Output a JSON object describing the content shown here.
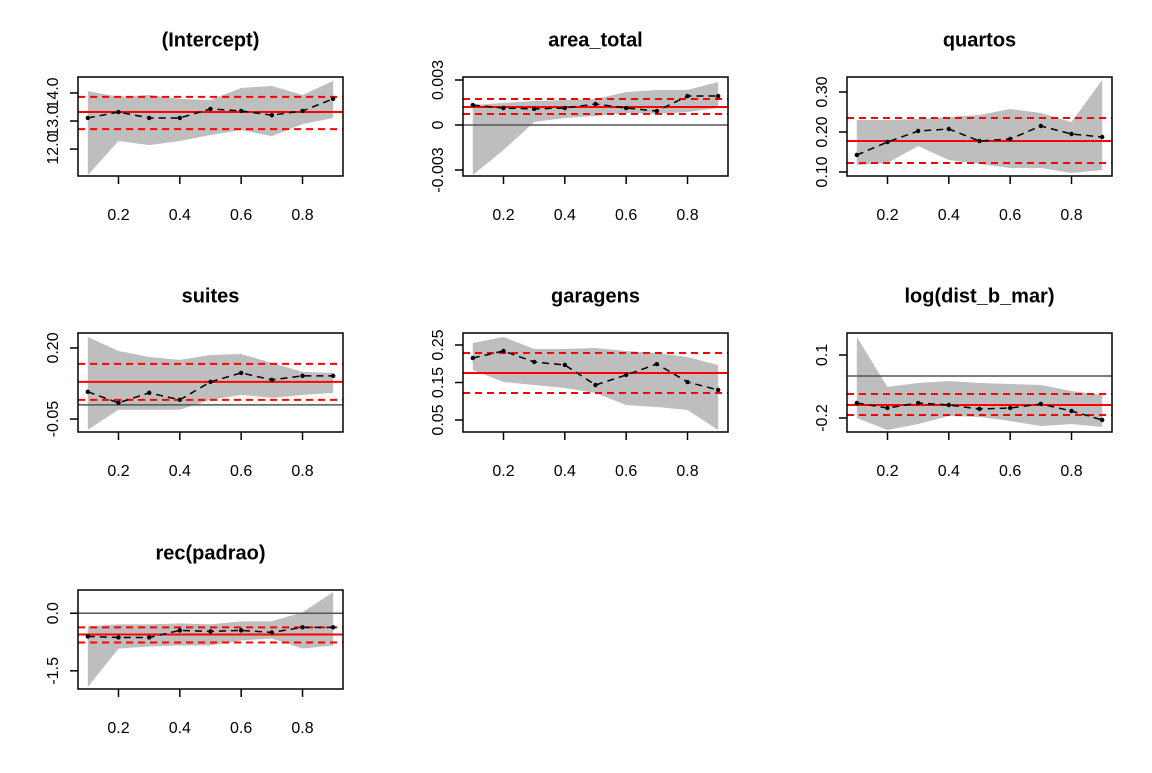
{
  "chart_data": [
    {
      "type": "line",
      "title": "(Intercept)",
      "x": [
        0.1,
        0.2,
        0.3,
        0.4,
        0.5,
        0.6,
        0.7,
        0.8,
        0.9
      ],
      "values": [
        13.11,
        13.32,
        13.11,
        13.11,
        13.43,
        13.36,
        13.21,
        13.36,
        13.79
      ],
      "lower": [
        11.07,
        12.29,
        12.14,
        12.29,
        12.5,
        12.68,
        12.46,
        12.89,
        13.11
      ],
      "upper": [
        14.07,
        13.86,
        13.93,
        13.79,
        13.75,
        14.18,
        14.25,
        13.93,
        14.43
      ],
      "ols": 13.32,
      "ols_lower": 12.71,
      "ols_upper": 13.86,
      "xlim": [
        0.068,
        0.932
      ],
      "xticks": [
        0.2,
        0.4,
        0.6,
        0.8
      ],
      "ylim": [
        11.04,
        14.57
      ],
      "yticks": [
        {
          "value": 12,
          "label": "12.0"
        },
        {
          "value": 13,
          "label": "13.0"
        },
        {
          "value": 14,
          "label": "14.0"
        }
      ],
      "band_color": "#bebebe",
      "line_color": "#000000",
      "ols_color": "#ff0000"
    },
    {
      "type": "line",
      "title": "area_total",
      "x": [
        0.1,
        0.2,
        0.3,
        0.4,
        0.5,
        0.6,
        0.7,
        0.8,
        0.9
      ],
      "values": [
        0.00133,
        0.00113,
        0.00107,
        0.00113,
        0.0014,
        0.00113,
        0.00093,
        0.00193,
        0.00193
      ],
      "lower": [
        -0.00333,
        -0.00167,
        0.0002,
        0.00047,
        0.0006,
        0.0008,
        0.00073,
        0.00087,
        0.00113
      ],
      "upper": [
        0.00133,
        0.00147,
        0.0016,
        0.00167,
        0.00173,
        0.0022,
        0.00233,
        0.00233,
        0.00287
      ],
      "ols": 0.0012,
      "ols_lower": 0.00073,
      "ols_upper": 0.00173,
      "ref_line": 0,
      "xlim": [
        0.068,
        0.932
      ],
      "xticks": [
        0.2,
        0.4,
        0.6,
        0.8
      ],
      "ylim": [
        -0.0034,
        0.0032
      ],
      "yticks": [
        -0.003,
        0,
        0.003
      ],
      "band_color": "#bebebe",
      "line_color": "#000000",
      "ols_color": "#ff0000",
      "ref_color": "#555555"
    },
    {
      "type": "line",
      "title": "quartos",
      "x": [
        0.1,
        0.2,
        0.3,
        0.4,
        0.5,
        0.6,
        0.7,
        0.8,
        0.9
      ],
      "values": [
        0.1425,
        0.175,
        0.2025,
        0.2075,
        0.1775,
        0.1825,
        0.215,
        0.195,
        0.1875
      ],
      "lower": [
        0.1175,
        0.1225,
        0.165,
        0.13,
        0.12,
        0.11,
        0.11,
        0.0975,
        0.105
      ],
      "upper": [
        0.23,
        0.23,
        0.2325,
        0.2375,
        0.2425,
        0.2575,
        0.2475,
        0.225,
        0.33
      ],
      "ols": 0.1775,
      "ols_lower": 0.1225,
      "ols_upper": 0.235,
      "xlim": [
        0.068,
        0.932
      ],
      "xticks": [
        0.2,
        0.4,
        0.6,
        0.8
      ],
      "ylim": [
        0.09,
        0.3375
      ],
      "yticks": [
        {
          "value": 0.1,
          "label": "0.10"
        },
        {
          "value": 0.2,
          "label": "0.20"
        },
        {
          "value": 0.3,
          "label": "0.30"
        }
      ],
      "band_color": "#bebebe",
      "line_color": "#000000",
      "ols_color": "#ff0000"
    },
    {
      "type": "line",
      "title": "suites",
      "x": [
        0.1,
        0.2,
        0.3,
        0.4,
        0.5,
        0.6,
        0.7,
        0.8,
        0.9
      ],
      "values": [
        0.0456,
        0.007,
        0.0421,
        0.0175,
        0.0807,
        0.1123,
        0.0877,
        0.1018,
        0.1018
      ],
      "lower": [
        -0.0877,
        -0.0175,
        -0.0175,
        -0.0175,
        0.0175,
        0.0351,
        0.0246,
        0.0351,
        0.0421
      ],
      "upper": [
        0.2386,
        0.1895,
        0.1684,
        0.1579,
        0.1754,
        0.1789,
        0.1474,
        0.1158,
        0.1123
      ],
      "ols": 0.0807,
      "ols_lower": 0.0175,
      "ols_upper": 0.1439,
      "ref_line": 0,
      "xlim": [
        0.068,
        0.932
      ],
      "xticks": [
        0.2,
        0.4,
        0.6,
        0.8
      ],
      "ylim": [
        -0.0956,
        0.2526
      ],
      "yticks": [
        -0.05,
        {
          "value": 0.2,
          "label": "0.20"
        }
      ],
      "band_color": "#bebebe",
      "line_color": "#000000",
      "ols_color": "#ff0000",
      "ref_color": "#555555"
    },
    {
      "type": "line",
      "title": "garagens",
      "x": [
        0.1,
        0.2,
        0.3,
        0.4,
        0.5,
        0.6,
        0.7,
        0.8,
        0.9
      ],
      "values": [
        0.2153,
        0.234,
        0.2047,
        0.1967,
        0.1433,
        0.17,
        0.1993,
        0.1513,
        0.13
      ],
      "lower": [
        0.1833,
        0.1513,
        0.1433,
        0.1353,
        0.122,
        0.09,
        0.0847,
        0.0767,
        0.0233
      ],
      "upper": [
        0.2553,
        0.2713,
        0.2393,
        0.2393,
        0.242,
        0.234,
        0.2287,
        0.218,
        0.1967
      ],
      "ols": 0.1753,
      "ols_lower": 0.122,
      "ols_upper": 0.2287,
      "xlim": [
        0.068,
        0.932
      ],
      "xticks": [
        0.2,
        0.4,
        0.6,
        0.8
      ],
      "ylim": [
        0.018,
        0.282
      ],
      "yticks": [
        0.05,
        0.15,
        0.25
      ],
      "band_color": "#bebebe",
      "line_color": "#000000",
      "ols_color": "#ff0000"
    },
    {
      "type": "line",
      "title": "log(dist_b_mar)",
      "x": [
        0.1,
        0.2,
        0.3,
        0.4,
        0.5,
        0.6,
        0.7,
        0.8,
        0.9
      ],
      "values": [
        -0.1286,
        -0.1524,
        -0.1286,
        -0.1381,
        -0.1571,
        -0.1524,
        -0.1333,
        -0.1667,
        -0.2095
      ],
      "lower": [
        -0.2,
        -0.2571,
        -0.2286,
        -0.1905,
        -0.1952,
        -0.2143,
        -0.2381,
        -0.2286,
        -0.2429
      ],
      "upper": [
        0.1857,
        -0.0524,
        -0.0333,
        -0.0238,
        -0.0333,
        -0.0381,
        -0.0429,
        -0.0714,
        -0.0905
      ],
      "ols": -0.1381,
      "ols_lower": -0.1857,
      "ols_upper": -0.0857,
      "ref_line": 0,
      "xlim": [
        0.068,
        0.932
      ],
      "xticks": [
        0.2,
        0.4,
        0.6,
        0.8
      ],
      "ylim": [
        -0.2667,
        0.2048
      ],
      "yticks": [
        -0.2,
        0.1
      ],
      "band_color": "#bebebe",
      "line_color": "#000000",
      "ols_color": "#ff0000",
      "ref_color": "#555555"
    },
    {
      "type": "line",
      "title": "rec(padrao)",
      "x": [
        0.1,
        0.2,
        0.3,
        0.4,
        0.5,
        0.6,
        0.7,
        0.8,
        0.9
      ],
      "values": [
        -0.605,
        -0.632,
        -0.632,
        -0.447,
        -0.474,
        -0.447,
        -0.5,
        -0.368,
        -0.368
      ],
      "lower": [
        -1.921,
        -0.921,
        -0.868,
        -0.842,
        -0.842,
        -0.711,
        -0.658,
        -0.921,
        -0.842
      ],
      "upper": [
        -0.342,
        -0.289,
        -0.289,
        -0.263,
        -0.289,
        -0.211,
        -0.211,
        0.026,
        0.553
      ],
      "ols": -0.553,
      "ols_lower": -0.763,
      "ols_upper": -0.368,
      "ref_line": 0,
      "xlim": [
        0.068,
        0.932
      ],
      "xticks": [
        0.2,
        0.4,
        0.6,
        0.8
      ],
      "ylim": [
        -1.974,
        0.605
      ],
      "yticks": [
        -1.5,
        {
          "value": 0,
          "label": "0.0"
        }
      ],
      "band_color": "#bebebe",
      "line_color": "#000000",
      "ols_color": "#ff0000",
      "ref_color": "#555555"
    }
  ]
}
